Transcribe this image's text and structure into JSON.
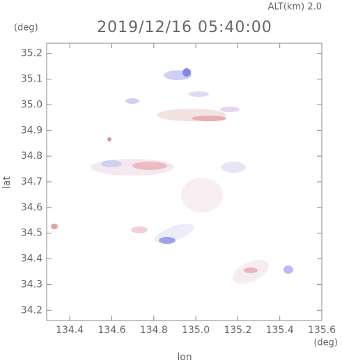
{
  "chart_data": {
    "type": "radar-map",
    "title": "2019/12/16 05:40:00",
    "altitude_label": "ALT(km) 2.0",
    "y_unit": "(deg)",
    "x_unit": "(deg)",
    "y_label": "lat",
    "x_label": "lon",
    "xlim": [
      134.29,
      135.6
    ],
    "ylim": [
      34.16,
      35.24
    ],
    "xticks": [
      134.4,
      134.6,
      134.8,
      {
        "value": 135,
        "label": "135.0"
      },
      135.2,
      135.4,
      135.6
    ],
    "yticks": [
      34.2,
      34.3,
      34.4,
      34.5,
      34.6,
      34.7,
      34.8,
      34.9,
      {
        "value": 35,
        "label": "35.0"
      },
      35.1,
      35.2
    ]
  }
}
